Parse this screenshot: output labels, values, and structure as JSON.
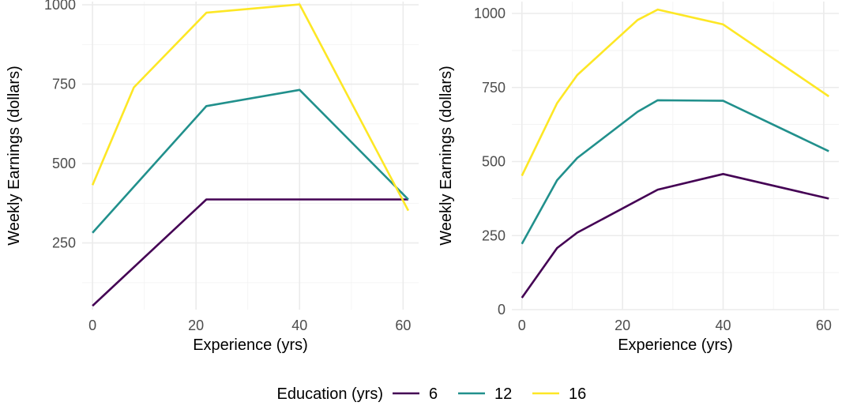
{
  "chart_data": [
    {
      "type": "line",
      "xlabel": "Experience (yrs)",
      "ylabel": "Weekly Earnings (dollars)",
      "xlim": [
        -2,
        63
      ],
      "ylim": [
        40,
        1010
      ],
      "xticks": [
        0,
        20,
        40,
        60
      ],
      "yticks": [
        250,
        500,
        750,
        1000
      ],
      "grid": true,
      "series": [
        {
          "name": "6",
          "color": "#440154",
          "x": [
            0,
            22,
            40,
            61
          ],
          "y": [
            52,
            387,
            387,
            387
          ]
        },
        {
          "name": "12",
          "color": "#21908C",
          "x": [
            0,
            22,
            40,
            61
          ],
          "y": [
            282,
            681,
            732,
            387
          ]
        },
        {
          "name": "16",
          "color": "#FDE725",
          "x": [
            0,
            8,
            22,
            40,
            61
          ],
          "y": [
            432,
            740,
            975,
            1001,
            352
          ]
        }
      ]
    },
    {
      "type": "line",
      "xlabel": "Experience (yrs)",
      "ylabel": "Weekly Earnings (dollars)",
      "xlim": [
        -2,
        63
      ],
      "ylim": [
        0,
        1040
      ],
      "xticks": [
        0,
        20,
        40,
        60
      ],
      "yticks": [
        0,
        250,
        500,
        750,
        1000
      ],
      "grid": true,
      "series": [
        {
          "name": "6",
          "color": "#440154",
          "x": [
            0,
            7,
            11,
            27,
            40,
            61
          ],
          "y": [
            40,
            208,
            260,
            405,
            458,
            375
          ]
        },
        {
          "name": "12",
          "color": "#21908C",
          "x": [
            0,
            7,
            11,
            23,
            27,
            40,
            61
          ],
          "y": [
            222,
            437,
            512,
            668,
            707,
            705,
            535
          ]
        },
        {
          "name": "16",
          "color": "#FDE725",
          "x": [
            0,
            7,
            11,
            23,
            27,
            40,
            61
          ],
          "y": [
            452,
            697,
            792,
            978,
            1013,
            963,
            720
          ]
        }
      ]
    }
  ],
  "legend": {
    "title": "Education (yrs)",
    "position": "bottom",
    "items": [
      {
        "label": "6",
        "color": "#440154"
      },
      {
        "label": "12",
        "color": "#21908C"
      },
      {
        "label": "16",
        "color": "#FDE725"
      }
    ]
  }
}
